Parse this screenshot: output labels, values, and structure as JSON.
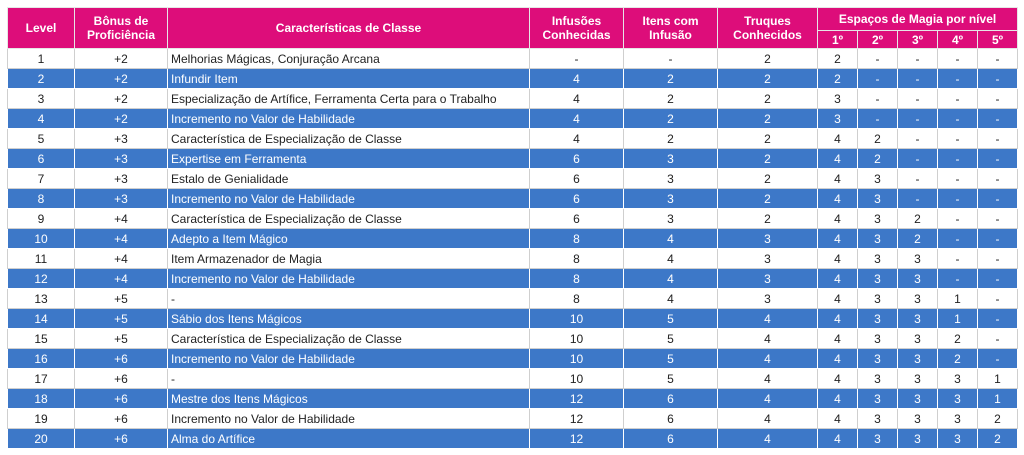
{
  "headers": {
    "level": "Level",
    "proficiency": "Bônus de Proficiência",
    "features": "Características de Classe",
    "infusions": "Infusões Conhecidas",
    "infused_items": "Itens com Infusão",
    "cantrips": "Truques Conhecidos",
    "spell_slots": "Espaços de Magia por nível",
    "slot_levels": [
      "1º",
      "2º",
      "3º",
      "4º",
      "5º"
    ]
  },
  "colors": {
    "header": "#dd0d7a",
    "even_row": "#3d78c8",
    "odd_row": "#ffffff"
  },
  "rows": [
    {
      "level": "1",
      "prof": "+2",
      "feature": "Melhorias Mágicas, Conjuração Arcana",
      "infusions": "-",
      "items": "-",
      "cantrips": "2",
      "slots": [
        "2",
        "-",
        "-",
        "-",
        "-"
      ]
    },
    {
      "level": "2",
      "prof": "+2",
      "feature": "Infundir Item",
      "infusions": "4",
      "items": "2",
      "cantrips": "2",
      "slots": [
        "2",
        "-",
        "-",
        "-",
        "-"
      ]
    },
    {
      "level": "3",
      "prof": "+2",
      "feature": "Especialização de Artífice, Ferramenta Certa para o Trabalho",
      "infusions": "4",
      "items": "2",
      "cantrips": "2",
      "slots": [
        "3",
        "-",
        "-",
        "-",
        "-"
      ]
    },
    {
      "level": "4",
      "prof": "+2",
      "feature": "Incremento no Valor de Habilidade",
      "infusions": "4",
      "items": "2",
      "cantrips": "2",
      "slots": [
        "3",
        "-",
        "-",
        "-",
        "-"
      ]
    },
    {
      "level": "5",
      "prof": "+3",
      "feature": "Característica de Especialização de Classe",
      "infusions": "4",
      "items": "2",
      "cantrips": "2",
      "slots": [
        "4",
        "2",
        "-",
        "-",
        "-"
      ]
    },
    {
      "level": "6",
      "prof": "+3",
      "feature": "Expertise em Ferramenta",
      "infusions": "6",
      "items": "3",
      "cantrips": "2",
      "slots": [
        "4",
        "2",
        "-",
        "-",
        "-"
      ]
    },
    {
      "level": "7",
      "prof": "+3",
      "feature": "Estalo de Genialidade",
      "infusions": "6",
      "items": "3",
      "cantrips": "2",
      "slots": [
        "4",
        "3",
        "-",
        "-",
        "-"
      ]
    },
    {
      "level": "8",
      "prof": "+3",
      "feature": "Incremento no Valor de Habilidade",
      "infusions": "6",
      "items": "3",
      "cantrips": "2",
      "slots": [
        "4",
        "3",
        "-",
        "-",
        "-"
      ]
    },
    {
      "level": "9",
      "prof": "+4",
      "feature": "Característica de Especialização de Classe",
      "infusions": "6",
      "items": "3",
      "cantrips": "2",
      "slots": [
        "4",
        "3",
        "2",
        "-",
        "-"
      ]
    },
    {
      "level": "10",
      "prof": "+4",
      "feature": "Adepto a Item Mágico",
      "infusions": "8",
      "items": "4",
      "cantrips": "3",
      "slots": [
        "4",
        "3",
        "2",
        "-",
        "-"
      ]
    },
    {
      "level": "11",
      "prof": "+4",
      "feature": "Item Armazenador de Magia",
      "infusions": "8",
      "items": "4",
      "cantrips": "3",
      "slots": [
        "4",
        "3",
        "3",
        "-",
        "-"
      ]
    },
    {
      "level": "12",
      "prof": "+4",
      "feature": "Incremento no Valor de Habilidade",
      "infusions": "8",
      "items": "4",
      "cantrips": "3",
      "slots": [
        "4",
        "3",
        "3",
        "-",
        "-"
      ]
    },
    {
      "level": "13",
      "prof": "+5",
      "feature": "-",
      "infusions": "8",
      "items": "4",
      "cantrips": "3",
      "slots": [
        "4",
        "3",
        "3",
        "1",
        "-"
      ]
    },
    {
      "level": "14",
      "prof": "+5",
      "feature": "Sábio dos Itens Mágicos",
      "infusions": "10",
      "items": "5",
      "cantrips": "4",
      "slots": [
        "4",
        "3",
        "3",
        "1",
        "-"
      ]
    },
    {
      "level": "15",
      "prof": "+5",
      "feature": "Característica de Especialização de Classe",
      "infusions": "10",
      "items": "5",
      "cantrips": "4",
      "slots": [
        "4",
        "3",
        "3",
        "2",
        "-"
      ]
    },
    {
      "level": "16",
      "prof": "+6",
      "feature": "Incremento no Valor de Habilidade",
      "infusions": "10",
      "items": "5",
      "cantrips": "4",
      "slots": [
        "4",
        "3",
        "3",
        "2",
        "-"
      ]
    },
    {
      "level": "17",
      "prof": "+6",
      "feature": "-",
      "infusions": "10",
      "items": "5",
      "cantrips": "4",
      "slots": [
        "4",
        "3",
        "3",
        "3",
        "1"
      ]
    },
    {
      "level": "18",
      "prof": "+6",
      "feature": "Mestre dos Itens Mágicos",
      "infusions": "12",
      "items": "6",
      "cantrips": "4",
      "slots": [
        "4",
        "3",
        "3",
        "3",
        "1"
      ]
    },
    {
      "level": "19",
      "prof": "+6",
      "feature": "Incremento no Valor de Habilidade",
      "infusions": "12",
      "items": "6",
      "cantrips": "4",
      "slots": [
        "4",
        "3",
        "3",
        "3",
        "2"
      ]
    },
    {
      "level": "20",
      "prof": "+6",
      "feature": "Alma do Artífice",
      "infusions": "12",
      "items": "6",
      "cantrips": "4",
      "slots": [
        "4",
        "3",
        "3",
        "3",
        "2"
      ]
    }
  ]
}
